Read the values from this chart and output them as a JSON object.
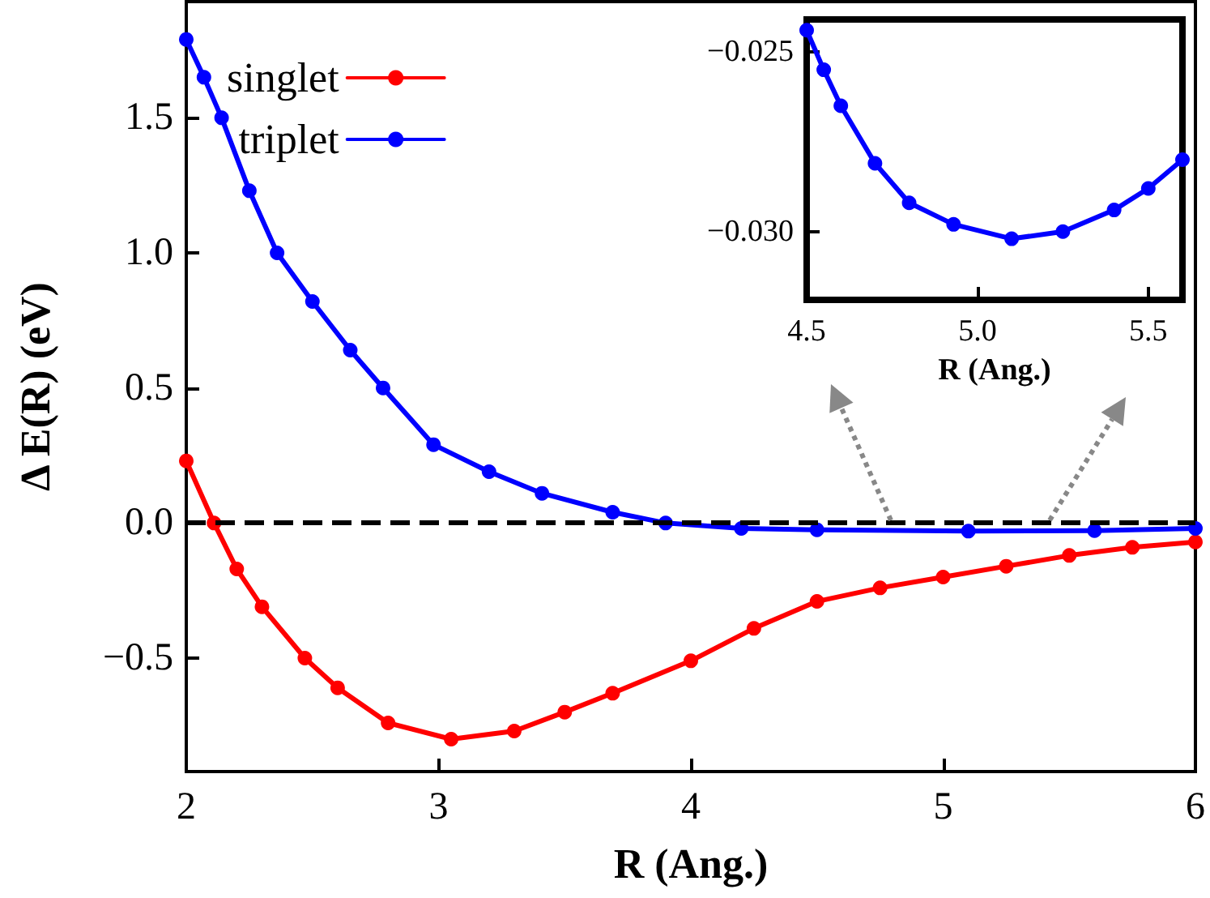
{
  "chart_data": [
    {
      "type": "line",
      "xlabel": "R (Ang.)",
      "ylabel": "Δ E(R) (eV)",
      "xlim": [
        2,
        6
      ],
      "ylim": [
        -0.92,
        1.93
      ],
      "xticks": [
        2,
        3,
        4,
        5,
        6
      ],
      "yticks": [
        {
          "value": -0.5,
          "label": "−0.5"
        },
        {
          "value": 0,
          "label": "0.0"
        },
        {
          "value": 0.5,
          "label": "0.5"
        },
        {
          "value": 1,
          "label": "1.0"
        },
        {
          "value": 1.5,
          "label": "1.5"
        }
      ],
      "grid": false,
      "legend": "top left",
      "marker": "circle",
      "ref_lines": [
        {
          "axis": "y",
          "value": 0,
          "color": "#000000",
          "line_style": "dashed"
        }
      ],
      "series": [
        {
          "name": "singlet",
          "color": "#ff0000",
          "x": [
            2.0,
            2.11,
            2.2,
            2.3,
            2.47,
            2.6,
            2.8,
            3.05,
            3.3,
            3.5,
            3.69,
            4.0,
            4.25,
            4.5,
            4.75,
            5.0,
            5.25,
            5.5,
            5.75,
            6.0
          ],
          "values": [
            0.23,
            0,
            -0.17,
            -0.31,
            -0.5,
            -0.61,
            -0.74,
            -0.8,
            -0.77,
            -0.7,
            -0.63,
            -0.51,
            -0.39,
            -0.29,
            -0.24,
            -0.2,
            -0.16,
            -0.12,
            -0.09,
            -0.07
          ]
        },
        {
          "name": "triplet",
          "color": "#0000ff",
          "x": [
            2.0,
            2.07,
            2.14,
            2.25,
            2.36,
            2.5,
            2.65,
            2.78,
            2.98,
            3.2,
            3.41,
            3.69,
            3.9,
            4.2,
            4.5,
            5.1,
            5.6,
            6.0
          ],
          "values": [
            1.79,
            1.65,
            1.5,
            1.23,
            1.0,
            0.82,
            0.64,
            0.5,
            0.29,
            0.19,
            0.11,
            0.04,
            0.0,
            -0.02,
            -0.025,
            -0.03,
            -0.028,
            -0.02
          ]
        }
      ]
    },
    {
      "type": "line",
      "xlabel": "R (Ang.)",
      "xlim": [
        4.5,
        5.6
      ],
      "ylim": [
        -0.0319,
        -0.0241
      ],
      "xticks": [
        {
          "value": 4.5,
          "label": "4.5"
        },
        {
          "value": 5,
          "label": "5.0"
        },
        {
          "value": 5.5,
          "label": "5.5"
        }
      ],
      "yticks": [
        {
          "value": -0.03,
          "label": "−0.030"
        },
        {
          "value": -0.025,
          "label": "−0.025"
        }
      ],
      "grid": false,
      "marker": "circle",
      "series": [
        {
          "color": "#0000ff",
          "x": [
            4.5,
            4.55,
            4.6,
            4.7,
            4.8,
            4.93,
            5.1,
            5.25,
            5.4,
            5.5,
            5.6
          ],
          "values": [
            -0.0244,
            -0.0255,
            -0.0265,
            -0.0281,
            -0.0292,
            -0.0298,
            -0.0302,
            -0.03,
            -0.0294,
            -0.0288,
            -0.028
          ]
        }
      ]
    }
  ]
}
